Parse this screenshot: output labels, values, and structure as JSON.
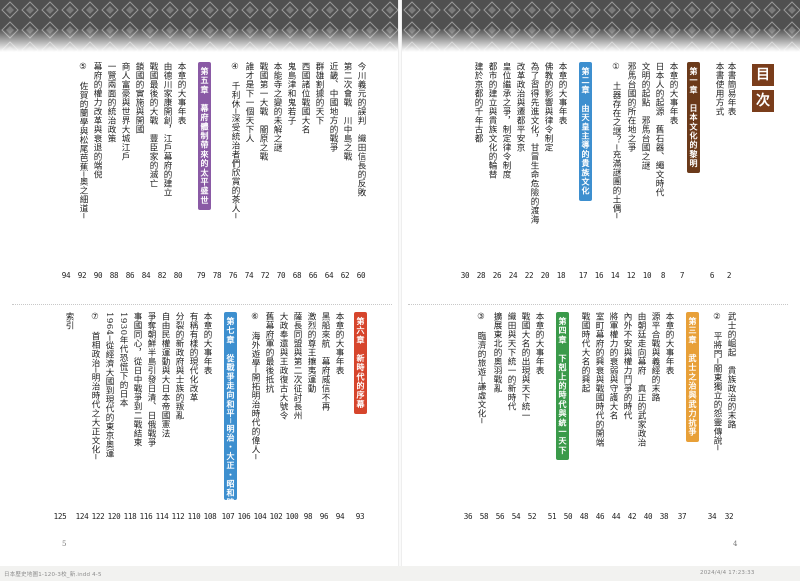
{
  "mokuji": [
    "目",
    "次"
  ],
  "right_top": {
    "items": [
      {
        "text": "本書簡易年表",
        "page": "2"
      },
      {
        "text": "本書使用方式",
        "page": "6"
      }
    ],
    "chapter1": {
      "label": "第一章",
      "title": "日本文化的黎明",
      "page": "7",
      "color": "#6b3a1a",
      "items": [
        {
          "text": "本章的大事年表",
          "page": "8"
        },
        {
          "text": "日本人的起源　舊石器、繩文時代",
          "page": "10"
        },
        {
          "text": "文明的起點　邪馬台國之謎",
          "page": "12"
        },
        {
          "text": "邪馬台國的所在地之爭",
          "page": "14"
        },
        {
          "text": "土器存在之謎？─充滿謎團的土偶─",
          "page": "16",
          "column": "①"
        }
      ]
    },
    "chapter2": {
      "label": "第二章",
      "title": "由天皇主導的貴族文化",
      "page": "17",
      "color": "#3d8fcf",
      "items": [
        {
          "text": "本章的大事年表",
          "page": "18"
        },
        {
          "text": "佛教的影響與律令制定",
          "page": "20"
        },
        {
          "text": "為了習得先進文化，甘冒生命危險的渡海",
          "page": "22"
        },
        {
          "text": "改革政治與遷都平安京",
          "page": "24"
        },
        {
          "text": "皇位繼承之爭，制定律令制度",
          "page": "26"
        },
        {
          "text": "都市的建立與貴族文化的輪替",
          "page": "28"
        },
        {
          "text": "建於京都的千年古都",
          "page": "30"
        }
      ]
    }
  },
  "left_top": {
    "items": [
      {
        "text": "今川義元的誤判　織田信長的反敗",
        "page": "60"
      },
      {
        "text": "第二次會戰　川中島之戰",
        "page": "62"
      },
      {
        "text": "近畿、中國地方的戰爭",
        "page": "64"
      },
      {
        "text": "群雄割據的天下",
        "page": "66"
      },
      {
        "text": "西國諸位戰國大名",
        "page": "68"
      },
      {
        "text": "鬼島津和鬼若子",
        "page": "70"
      },
      {
        "text": "本能寺之變的未解之謎",
        "page": "72"
      },
      {
        "text": "戰國第一大戰　關原之戰",
        "page": "74"
      },
      {
        "text": "誰才是下一個天下人",
        "page": "76"
      },
      {
        "text": "千利休─深受統治者們欣賞的茶人─",
        "page": "78",
        "column": "④"
      }
    ],
    "chapter5": {
      "label": "第五章",
      "title": "幕府體制帶來的太平盛世",
      "page": "79",
      "color": "#8a5aa5",
      "items": [
        {
          "text": "本章的大事年表",
          "page": "80"
        },
        {
          "text": "由德川家康開創，江戶幕府的建立",
          "page": "82"
        },
        {
          "text": "戰國最後的大戰　豐臣家的滅亡",
          "page": "84"
        },
        {
          "text": "鎖國的實施與開國",
          "page": "86"
        },
        {
          "text": "商人富豪與世界大城江戶",
          "page": "88"
        },
        {
          "text": "一覽兩面的統治政策",
          "page": "90"
        },
        {
          "text": "幕府的權力改革與衰退的端倪",
          "page": "92"
        },
        {
          "text": "佐賀的蘭學與松尾芭蕉─奧之細道─",
          "page": "94",
          "column": "⑤"
        }
      ]
    }
  },
  "right_bottom": {
    "items": [
      {
        "text": "武士的崛起　貴族政治的末路",
        "page": "32"
      },
      {
        "text": "平將門─關東獨立的怨靈傳說─",
        "page": "34",
        "column": "②"
      }
    ],
    "chapter3": {
      "label": "第三章",
      "title": "武士之治與武力抗爭",
      "page": "37",
      "color": "#e8a038",
      "items": [
        {
          "text": "本章的大事年表",
          "page": "38"
        },
        {
          "text": "源平合戰與義經的末路",
          "page": "40"
        },
        {
          "text": "由朝廷走向幕府　真正的武家政治",
          "page": "42"
        },
        {
          "text": "內外不安與權力鬥爭的時代",
          "page": "44"
        },
        {
          "text": "將軍權力的衰弱與守護大名",
          "page": "46"
        },
        {
          "text": "室町幕府的興衰與戰國時代的開端",
          "page": "48"
        },
        {
          "text": "戰國時代大名的興起",
          "page": "50"
        }
      ]
    },
    "chapter4": {
      "label": "第四章",
      "title": "下剋上的時代與統一天下",
      "page": "51",
      "color": "#3a9a4a",
      "items": [
        {
          "text": "本章的大事年表",
          "page": "52"
        },
        {
          "text": "戰國大名的出現與天下統一",
          "page": "54"
        },
        {
          "text": "織田與天下統一的新時代",
          "page": "56"
        },
        {
          "text": "擴展東北的奧羽戰亂",
          "page": "58"
        },
        {
          "text": "臨濟的旅遊─謙虛文化─",
          "page": "36",
          "column": "③"
        }
      ]
    }
  },
  "left_bottom": {
    "chapter6": {
      "label": "第六章",
      "title": "新時代的序幕",
      "page": "93",
      "color": "#d6452c",
      "items": [
        {
          "text": "本章的大事年表",
          "page": "94"
        },
        {
          "text": "黑船來航　幕府威信不再",
          "page": "96"
        },
        {
          "text": "激烈的尊王攘夷運動",
          "page": "98"
        },
        {
          "text": "薩長同盟與第二次征討長州",
          "page": "100"
        },
        {
          "text": "大政奉還與王政復古大號令",
          "page": "102"
        },
        {
          "text": "舊幕府軍的最後抵抗",
          "page": "104"
        }
      ]
    },
    "column6": {
      "text": "海外遊學─開拓明治時代的偉人─",
      "page": "106",
      "column": "⑥"
    },
    "chapter7": {
      "label": "第七章",
      "title": "從戰爭走向和平",
      "range": "明治・大正・昭和時代",
      "page": "107",
      "color": "#3d8fcf",
      "items": [
        {
          "text": "本章的大事年表",
          "page": "108"
        },
        {
          "text": "有稱有樣的現代化改革",
          "page": "110"
        },
        {
          "text": "分裂的新政府與士族的叛亂",
          "page": "112"
        },
        {
          "text": "自由民權運動與大日本帝國憲法",
          "page": "114"
        },
        {
          "text": "爭奪朝鮮半島引發日清、日俄戰爭",
          "page": "116"
        },
        {
          "text": "事國同心，從日中戰爭到二戰結束",
          "page": "118"
        },
        {
          "text": "1930年代恐慌下的日本",
          "page": "120"
        },
        {
          "text": "1964─從經濟大國到現代的東京奧運",
          "page": "122"
        },
        {
          "text": "首相政治─明治時代之大正文化─",
          "page": "124",
          "column": "⑦"
        }
      ]
    },
    "index": {
      "text": "索引",
      "page": "125"
    }
  },
  "folios": {
    "left": "5",
    "right": "4"
  },
  "footer": {
    "left": "日本歷史地圖1-120-3校_新.indd 4-5",
    "right": "2024/4/4  17:23:33"
  },
  "colors": {
    "band": "#4c4c4c",
    "mokuji_box": "#7a3d1b"
  }
}
